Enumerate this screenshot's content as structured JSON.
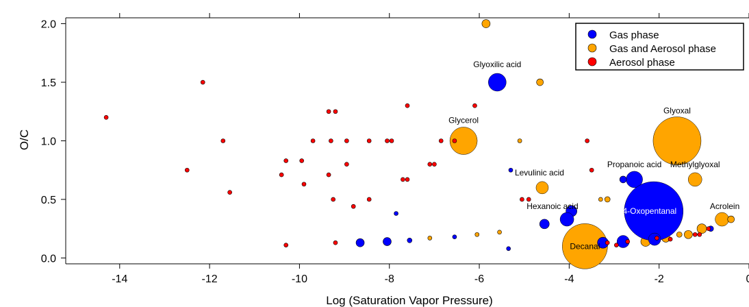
{
  "chart_data": {
    "type": "scatter",
    "xlabel": "Log (Saturation Vapor Pressure)",
    "ylabel": "O/C",
    "xlim": [
      -15.2,
      0
    ],
    "ylim": [
      -0.05,
      2.05
    ],
    "x_ticks": [
      -14,
      -12,
      -10,
      -8,
      -6,
      -4,
      -2,
      0
    ],
    "y_ticks": [
      0.0,
      0.5,
      1.0,
      1.5,
      2.0
    ],
    "x_tick_labels": [
      "-14",
      "-12",
      "-10",
      "-8",
      "-6",
      "-4",
      "-2",
      "0"
    ],
    "y_tick_labels": [
      "0.0",
      "0.5",
      "1.0",
      "1.5",
      "2.0"
    ],
    "grid": false,
    "legend_position": "top-right",
    "series": [
      {
        "name": "Gas phase",
        "color": "#0000ff",
        "points": [
          {
            "x": -5.6,
            "y": 1.5,
            "size": 13
          },
          {
            "x": -2.55,
            "y": 0.67,
            "size": 12
          },
          {
            "x": -2.12,
            "y": 0.4,
            "size": 43
          },
          {
            "x": -2.8,
            "y": 0.67,
            "size": 5
          },
          {
            "x": -3.25,
            "y": 0.13,
            "size": 8
          },
          {
            "x": -2.8,
            "y": 0.14,
            "size": 9
          },
          {
            "x": -2.1,
            "y": 0.16,
            "size": 9
          },
          {
            "x": -3.95,
            "y": 0.4,
            "size": 8
          },
          {
            "x": -4.05,
            "y": 0.33,
            "size": 10
          },
          {
            "x": -4.55,
            "y": 0.29,
            "size": 7
          },
          {
            "x": -0.85,
            "y": 0.25,
            "size": 4
          },
          {
            "x": -8.65,
            "y": 0.13,
            "size": 6
          },
          {
            "x": -8.05,
            "y": 0.14,
            "size": 6
          },
          {
            "x": -7.55,
            "y": 0.15,
            "size": 3.5
          },
          {
            "x": -7.85,
            "y": 0.38,
            "size": 3
          },
          {
            "x": -6.55,
            "y": 0.18,
            "size": 3
          },
          {
            "x": -5.3,
            "y": 0.75,
            "size": 3
          },
          {
            "x": -5.35,
            "y": 0.08,
            "size": 3
          }
        ]
      },
      {
        "name": "Gas and Aerosol phase",
        "color": "#ffa500",
        "points": [
          {
            "x": -1.6,
            "y": 1.0,
            "size": 35
          },
          {
            "x": -6.35,
            "y": 1.0,
            "size": 20
          },
          {
            "x": -3.65,
            "y": 0.1,
            "size": 33
          },
          {
            "x": -4.6,
            "y": 0.6,
            "size": 9
          },
          {
            "x": -1.2,
            "y": 0.67,
            "size": 10
          },
          {
            "x": -0.6,
            "y": 0.33,
            "size": 10
          },
          {
            "x": -1.05,
            "y": 0.25,
            "size": 7
          },
          {
            "x": -0.4,
            "y": 0.33,
            "size": 5
          },
          {
            "x": -5.85,
            "y": 2.0,
            "size": 6
          },
          {
            "x": -4.65,
            "y": 1.5,
            "size": 5
          },
          {
            "x": -5.1,
            "y": 1.0,
            "size": 3
          },
          {
            "x": -3.3,
            "y": 0.5,
            "size": 3
          },
          {
            "x": -3.15,
            "y": 0.5,
            "size": 4
          },
          {
            "x": -1.9,
            "y": 0.5,
            "size": 5
          },
          {
            "x": -2.3,
            "y": 0.14,
            "size": 7
          },
          {
            "x": -1.85,
            "y": 0.17,
            "size": 6
          },
          {
            "x": -1.35,
            "y": 0.2,
            "size": 6
          },
          {
            "x": -1.55,
            "y": 0.2,
            "size": 4
          },
          {
            "x": -7.1,
            "y": 0.17,
            "size": 3
          },
          {
            "x": -6.05,
            "y": 0.2,
            "size": 3
          },
          {
            "x": -5.55,
            "y": 0.22,
            "size": 3
          }
        ]
      },
      {
        "name": "Aerosol phase",
        "color": "#ff0000",
        "points": [
          {
            "x": -14.3,
            "y": 1.2
          },
          {
            "x": -12.15,
            "y": 1.5
          },
          {
            "x": -11.7,
            "y": 1.0
          },
          {
            "x": -12.5,
            "y": 0.75
          },
          {
            "x": -11.55,
            "y": 0.56
          },
          {
            "x": -10.3,
            "y": 0.83
          },
          {
            "x": -10.4,
            "y": 0.71
          },
          {
            "x": -9.95,
            "y": 0.83
          },
          {
            "x": -9.9,
            "y": 0.63
          },
          {
            "x": -9.7,
            "y": 1.0
          },
          {
            "x": -9.35,
            "y": 1.25
          },
          {
            "x": -9.2,
            "y": 1.25
          },
          {
            "x": -9.3,
            "y": 1.0
          },
          {
            "x": -9.35,
            "y": 0.71
          },
          {
            "x": -9.25,
            "y": 0.5
          },
          {
            "x": -8.95,
            "y": 1.0
          },
          {
            "x": -8.95,
            "y": 0.8
          },
          {
            "x": -8.8,
            "y": 0.44
          },
          {
            "x": -8.45,
            "y": 1.0
          },
          {
            "x": -8.45,
            "y": 0.5
          },
          {
            "x": -8.05,
            "y": 1.0
          },
          {
            "x": -7.95,
            "y": 1.0
          },
          {
            "x": -7.7,
            "y": 0.67
          },
          {
            "x": -7.6,
            "y": 0.67
          },
          {
            "x": -7.6,
            "y": 1.3
          },
          {
            "x": -7.1,
            "y": 0.8
          },
          {
            "x": -7.0,
            "y": 0.8
          },
          {
            "x": -6.85,
            "y": 1.0
          },
          {
            "x": -6.55,
            "y": 1.0
          },
          {
            "x": -6.1,
            "y": 1.3
          },
          {
            "x": -10.3,
            "y": 0.11
          },
          {
            "x": -9.2,
            "y": 0.13
          },
          {
            "x": -3.6,
            "y": 1.0
          },
          {
            "x": -3.5,
            "y": 0.75
          },
          {
            "x": -5.05,
            "y": 0.5
          },
          {
            "x": -4.9,
            "y": 0.5
          },
          {
            "x": -3.15,
            "y": 0.13
          },
          {
            "x": -2.95,
            "y": 0.11
          },
          {
            "x": -2.7,
            "y": 0.14
          },
          {
            "x": -2.05,
            "y": 0.17
          },
          {
            "x": -1.75,
            "y": 0.16
          },
          {
            "x": -1.2,
            "y": 0.2
          },
          {
            "x": -1.1,
            "y": 0.2
          },
          {
            "x": -0.9,
            "y": 0.25
          }
        ]
      }
    ],
    "annotations": [
      {
        "text": "Glyoxilic acid",
        "x": -5.6,
        "y": 1.5,
        "color": "#000000"
      },
      {
        "text": "Glycerol",
        "x": -6.35,
        "y": 1.0,
        "color": "#000000"
      },
      {
        "text": "Glyoxal",
        "x": -1.6,
        "y": 1.0,
        "color": "#000000"
      },
      {
        "text": "Levulinic acid",
        "x": -4.6,
        "y": 0.6,
        "color": "#000000"
      },
      {
        "text": "Propanoic acid",
        "x": -2.55,
        "y": 0.67,
        "color": "#000000"
      },
      {
        "text": "Methylglyoxal",
        "x": -1.2,
        "y": 0.67,
        "color": "#000000"
      },
      {
        "text": "Hexanoic acid",
        "x": -4.25,
        "y": 0.4,
        "color": "#000000"
      },
      {
        "text": "4-Oxopentanal",
        "x": -2.12,
        "y": 0.4,
        "color": "#ffffff"
      },
      {
        "text": "Acrolein",
        "x": -0.6,
        "y": 0.33,
        "color": "#000000"
      },
      {
        "text": "Decanal",
        "x": -3.65,
        "y": 0.1,
        "color": "#000000"
      }
    ]
  }
}
